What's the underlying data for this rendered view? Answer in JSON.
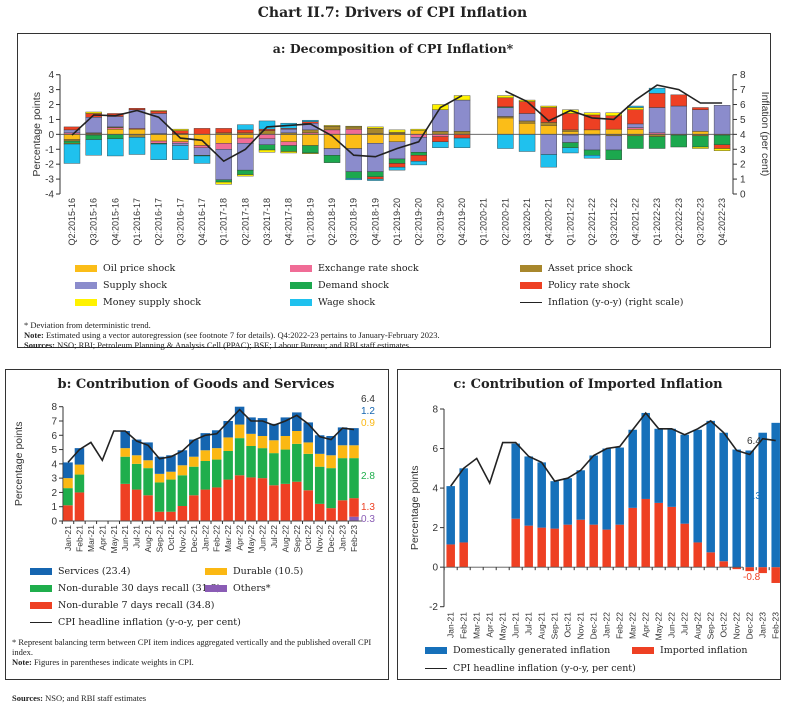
{
  "title": "Chart II.7: Drivers of CPI Inflation",
  "panel_a": {
    "title": "a: Decomposition of CPI Inflation*",
    "notes": [
      "* Deviation from deterministic trend.",
      "Estimated using a vector autoregression (see footnote 7 for details). Q4:2022-23 pertains to January-February 2023.",
      "NSO; RBI; Petroleum Planning & Analysis Cell (PPAC); BSE; Labour Bureau; and RBI staff estimates."
    ],
    "note_label": "Note:",
    "sources_label": "Sources:"
  },
  "panel_b": {
    "title": "b: Contribution of Goods and Services",
    "notes": [
      "* Represent balancing term between CPI item indices aggregated vertically and the published overall CPI index.",
      "Figures in parentheses indicate weights in CPI."
    ],
    "note_label": "Note:"
  },
  "panel_c": {
    "title": "c: Contribution of Imported Inflation"
  },
  "sources": {
    "label": "Sources:",
    "text": "NSO; and RBI staff estimates"
  },
  "chart_data": [
    {
      "type": "bar",
      "stacked": true,
      "title": "a: Decomposition of CPI Inflation*",
      "ylabel": "Percentage points",
      "y2label": "Inflation (per cent)",
      "ylim": [
        -4,
        4
      ],
      "y2lim": [
        0,
        8
      ],
      "categories": [
        "Q2:2015-16",
        "Q3:2015-16",
        "Q4:2015-16",
        "Q1:2016-17",
        "Q2:2016-17",
        "Q3:2016-17",
        "Q4:2016-17",
        "Q1:2017-18",
        "Q2:2017-18",
        "Q3:2017-18",
        "Q4:2017-18",
        "Q1:2018-19",
        "Q2:2018-19",
        "Q3:2018-19",
        "Q4:2018-19",
        "Q1:2019-20",
        "Q2:2019-20",
        "Q3:2019-20",
        "Q4:2019-20",
        "Q1:2020-21",
        "Q2:2020-21",
        "Q3:2020-21",
        "Q4:2020-21",
        "Q1:2021-22",
        "Q2:2021-22",
        "Q3:2021-22",
        "Q4:2021-22",
        "Q1:2022-23",
        "Q2:2022-23",
        "Q3:2022-23",
        "Q4:2022-23"
      ],
      "series": [
        {
          "name": "Oil price shock",
          "color": "#fbbd18",
          "values": [
            -0.35,
            -0.05,
            0.35,
            0.35,
            -0.45,
            -0.5,
            -0.75,
            -0.6,
            -0.25,
            0,
            -0.5,
            -0.75,
            -0.95,
            -0.95,
            -0.6,
            -0.5,
            0.25,
            0,
            0,
            null,
            1.1,
            0.75,
            0.6,
            0.2,
            0.3,
            0.35,
            0.35,
            0,
            0,
            0.2,
            0
          ]
        },
        {
          "name": "Exchange rate shock",
          "color": "#f06c96",
          "values": [
            0.1,
            0.05,
            0.1,
            0.05,
            -0.15,
            -0.1,
            -0.15,
            -0.4,
            -0.35,
            -0.3,
            -0.25,
            0.1,
            0.3,
            0.35,
            0.05,
            0.05,
            -0.2,
            -0.15,
            0,
            null,
            0,
            0,
            0,
            -0.05,
            0,
            0,
            0.1,
            0.1,
            0,
            0,
            0
          ]
        },
        {
          "name": "Asset price shock",
          "color": "#a8872c",
          "values": [
            -0.1,
            0.05,
            0.05,
            -0.2,
            0.05,
            0.05,
            0,
            0.1,
            0.1,
            0.25,
            0.1,
            0.2,
            0.25,
            0.15,
            0.35,
            0.1,
            0,
            0.2,
            0.2,
            null,
            0.1,
            0.15,
            0.2,
            0.1,
            -0.05,
            -0.1,
            -0.1,
            -0.15,
            -0.05,
            -0.1,
            -0.05
          ]
        },
        {
          "name": "Supply shock",
          "color": "#8b8ccc",
          "values": [
            0.2,
            1.05,
            0.7,
            1.25,
            1.35,
            -0.15,
            -0.5,
            -2.05,
            -1.8,
            -0.4,
            0.25,
            0.45,
            -0.45,
            -1.55,
            -1.9,
            -1.15,
            -1.0,
            1.45,
            2.1,
            null,
            0.6,
            0.5,
            -1.35,
            -0.5,
            -1.0,
            -0.95,
            0.25,
            1.7,
            1.9,
            1.45,
            1.95
          ]
        },
        {
          "name": "Demand shock",
          "color": "#1ca84e",
          "values": [
            -0.15,
            -0.3,
            -0.3,
            0,
            -0.05,
            0,
            -0.05,
            -0.15,
            -0.3,
            -0.35,
            -0.4,
            -0.5,
            -0.5,
            -0.45,
            -0.35,
            -0.3,
            -0.2,
            0,
            0,
            null,
            0.05,
            0,
            0,
            -0.35,
            -0.35,
            -0.65,
            -0.85,
            -0.8,
            -0.8,
            -0.75,
            -0.65
          ]
        },
        {
          "name": "Policy rate shock",
          "color": "#ee4023",
          "values": [
            0.2,
            0.25,
            0.2,
            0.1,
            0.15,
            0.2,
            0.4,
            0.3,
            0.2,
            0.1,
            0.05,
            0.1,
            0,
            0,
            -0.15,
            -0.25,
            -0.4,
            -0.35,
            -0.25,
            null,
            0.6,
            0.8,
            1.0,
            1.1,
            1.0,
            0.9,
            0.95,
            0.95,
            0.75,
            0.15,
            -0.25
          ]
        },
        {
          "name": "Money supply shock",
          "color": "#fff200",
          "values": [
            -0.05,
            0.1,
            0,
            0,
            0.05,
            0.1,
            0,
            -0.15,
            -0.1,
            -0.15,
            -0.1,
            -0.05,
            0.05,
            0.05,
            0.1,
            0.15,
            0.1,
            0.35,
            0.3,
            null,
            0.15,
            0.1,
            0.1,
            0.25,
            0.15,
            0.2,
            0.15,
            0,
            0,
            -0.1,
            -0.15
          ]
        },
        {
          "name": "Wage shock",
          "color": "#1fc1ee",
          "values": [
            -1.3,
            -1.05,
            -1.15,
            -1.15,
            -1.05,
            -0.95,
            -0.5,
            0,
            0.35,
            0.55,
            0.35,
            0.1,
            0,
            -0.1,
            -0.1,
            -0.2,
            -0.25,
            -0.4,
            -0.65,
            null,
            -0.95,
            -1.15,
            -0.85,
            -0.35,
            -0.2,
            0,
            0.1,
            0.35,
            0,
            0,
            0
          ]
        }
      ],
      "line": {
        "name": "Inflation (y-o-y) (right scale)",
        "axis": "right",
        "values": [
          3.95,
          5.3,
          5.25,
          5.6,
          5.15,
          3.75,
          3.6,
          2.2,
          3.0,
          4.5,
          4.6,
          4.7,
          3.9,
          2.6,
          2.5,
          3.05,
          3.5,
          5.8,
          6.6,
          null,
          6.9,
          6.2,
          4.9,
          5.6,
          5.1,
          5.0,
          6.3,
          7.3,
          7.0,
          6.1,
          6.1
        ]
      },
      "yticks": [
        "-4",
        "-3",
        "-2",
        "-1",
        "0",
        "1",
        "2",
        "3",
        "4"
      ],
      "y2ticks": [
        "0",
        "1",
        "2",
        "3",
        "4",
        "5",
        "6",
        "7",
        "8"
      ],
      "legend": "bottom"
    },
    {
      "type": "bar",
      "stacked": true,
      "title": "b: Contribution of Goods and Services",
      "ylabel": "Percentage points",
      "ylim": [
        0,
        8
      ],
      "categories": [
        "Jan-21",
        "Feb-21",
        "Mar-21",
        "Apr-21",
        "May-21",
        "Jun-21",
        "Jul-21",
        "Aug-21",
        "Sep-21",
        "Oct-21",
        "Nov-21",
        "Dec-21",
        "Jan-22",
        "Feb-22",
        "Mar-22",
        "Apr-22",
        "May-22",
        "Jun-22",
        "Jul-22",
        "Aug-22",
        "Sep-22",
        "Oct-22",
        "Nov-22",
        "Dec-22",
        "Jan-23",
        "Feb-23"
      ],
      "series": [
        {
          "name": "Others*",
          "color": "#8a5cb5",
          "values": [
            0,
            0,
            null,
            null,
            null,
            0,
            0,
            0,
            0,
            0,
            0,
            0,
            0,
            0,
            0,
            0,
            0,
            0,
            0,
            0,
            0,
            0,
            0,
            0,
            0,
            0.3
          ]
        },
        {
          "name": "Non-durable 7 days recall (34.8)",
          "color": "#ee4023",
          "values": [
            1.1,
            2.0,
            null,
            null,
            null,
            2.6,
            2.2,
            1.8,
            0.65,
            0.65,
            1.05,
            1.8,
            2.2,
            2.35,
            2.9,
            3.2,
            3.05,
            3.0,
            2.5,
            2.6,
            2.75,
            2.15,
            1.2,
            0.9,
            1.45,
            1.3
          ]
        },
        {
          "name": "Non-durable 30 days recall (31.3)",
          "color": "#1fae4c",
          "values": [
            1.2,
            1.25,
            null,
            null,
            null,
            1.9,
            1.8,
            1.9,
            2.05,
            2.25,
            2.15,
            2.0,
            2.0,
            1.95,
            2.0,
            2.6,
            2.2,
            2.1,
            2.25,
            2.4,
            2.65,
            2.55,
            2.6,
            2.8,
            2.95,
            2.8
          ]
        },
        {
          "name": "Durable (10.5)",
          "color": "#fbb813",
          "values": [
            0.7,
            0.7,
            null,
            null,
            null,
            0.6,
            0.6,
            0.55,
            0.6,
            0.55,
            0.7,
            0.7,
            0.75,
            0.8,
            0.95,
            0.95,
            0.85,
            0.85,
            0.9,
            0.95,
            0.9,
            0.8,
            0.9,
            0.9,
            0.9,
            0.9
          ]
        },
        {
          "name": "Services (23.4)",
          "color": "#1565b0",
          "values": [
            1.1,
            1.15,
            null,
            null,
            null,
            1.2,
            1.1,
            1.25,
            1.2,
            1.15,
            1.05,
            1.2,
            1.2,
            1.25,
            1.15,
            1.25,
            1.15,
            1.25,
            1.15,
            1.3,
            1.3,
            1.4,
            1.3,
            1.35,
            1.25,
            1.2
          ]
        }
      ],
      "line": {
        "name": "CPI headline inflation (y-o-y, per cent)",
        "values": [
          4.1,
          5.0,
          5.5,
          4.25,
          6.3,
          6.3,
          5.6,
          5.3,
          4.35,
          4.5,
          4.9,
          5.65,
          6.0,
          6.1,
          6.95,
          7.8,
          7.0,
          7.0,
          6.7,
          7.0,
          7.4,
          6.8,
          5.9,
          5.7,
          6.5,
          6.4
        ]
      },
      "data_labels": [
        {
          "text": "6.4",
          "color": "#333333"
        },
        {
          "text": "1.2",
          "color": "#1565b0"
        },
        {
          "text": "0.9",
          "color": "#fbb813"
        },
        {
          "text": "2.8",
          "color": "#1fae4c"
        },
        {
          "text": "1.3",
          "color": "#ee4023"
        },
        {
          "text": "0.3",
          "color": "#8a5cb5"
        }
      ],
      "yticks": [
        "0",
        "1",
        "2",
        "3",
        "4",
        "5",
        "6",
        "7",
        "8"
      ],
      "legend": "bottom"
    },
    {
      "type": "bar",
      "stacked": true,
      "title": "c: Contribution of Imported Inflation",
      "ylabel": "Percentage points",
      "ylim": [
        -2,
        8
      ],
      "categories": [
        "Jan-21",
        "Feb-21",
        "Mar-21",
        "Apr-21",
        "May-21",
        "Jun-21",
        "Jul-21",
        "Aug-21",
        "Sep-21",
        "Oct-21",
        "Nov-21",
        "Dec-21",
        "Jan-22",
        "Feb-22",
        "Mar-22",
        "Apr-22",
        "May-22",
        "Jun-22",
        "Jul-22",
        "Aug-22",
        "Sep-22",
        "Oct-22",
        "Nov-22",
        "Dec-22",
        "Jan-23",
        "Feb-23"
      ],
      "series": [
        {
          "name": "Imported inflation",
          "color": "#ee4023",
          "values": [
            1.15,
            1.25,
            null,
            null,
            null,
            2.45,
            2.1,
            2.0,
            1.95,
            2.15,
            2.4,
            2.15,
            1.9,
            2.15,
            3.0,
            3.45,
            3.25,
            3.05,
            2.2,
            1.25,
            0.75,
            0.3,
            -0.1,
            -0.2,
            -0.3,
            -0.8
          ]
        },
        {
          "name": "Domestically generated inflation",
          "color": "#1670ba",
          "values": [
            2.95,
            3.75,
            null,
            null,
            null,
            3.8,
            3.5,
            3.3,
            2.4,
            2.35,
            2.5,
            3.5,
            4.1,
            3.9,
            3.95,
            4.35,
            3.75,
            3.95,
            4.5,
            5.7,
            6.65,
            6.5,
            5.95,
            5.9,
            6.8,
            7.3
          ]
        }
      ],
      "line": {
        "name": "CPI headline inflation (y-o-y, per cent)",
        "values": [
          4.1,
          5.0,
          5.5,
          4.25,
          6.3,
          6.3,
          5.6,
          5.3,
          4.35,
          4.5,
          4.9,
          5.65,
          6.0,
          6.1,
          6.95,
          7.8,
          7.0,
          7.0,
          6.7,
          7.0,
          7.4,
          6.8,
          5.9,
          5.7,
          6.5,
          6.4
        ]
      },
      "data_labels": [
        {
          "text": "6.4",
          "color": "#333333"
        },
        {
          "text": "7.3",
          "color": "#1670ba"
        },
        {
          "text": "-0.8",
          "color": "#ee4023"
        }
      ],
      "yticks": [
        "-2",
        "0",
        "2",
        "4",
        "6",
        "8"
      ],
      "legend": "bottom"
    }
  ]
}
